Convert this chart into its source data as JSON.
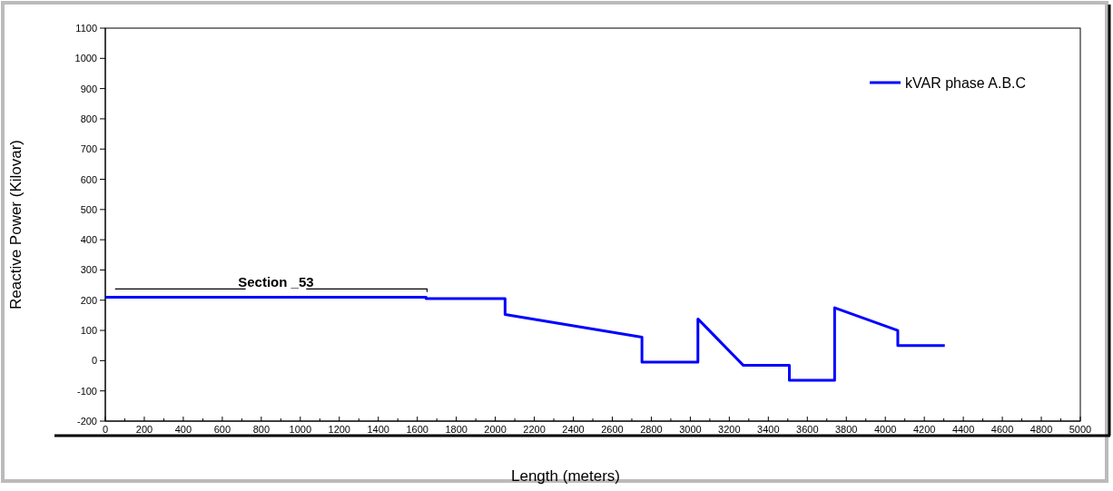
{
  "chart_data": {
    "type": "line",
    "xlabel": "Length (meters)",
    "ylabel": "Reactive Power (Kilovar)",
    "xlim": [
      0,
      5000
    ],
    "xticks": [
      0,
      200,
      400,
      600,
      800,
      1000,
      1200,
      1400,
      1600,
      1800,
      2000,
      2200,
      2400,
      2600,
      2800,
      3000,
      3200,
      3400,
      3600,
      3800,
      4000,
      4200,
      4400,
      4600,
      4800,
      5000
    ],
    "ylim": [
      -200,
      1100
    ],
    "yticks": [
      -200,
      -100,
      0,
      100,
      200,
      300,
      400,
      500,
      600,
      700,
      800,
      900,
      1000,
      1100
    ],
    "grid": false,
    "legend": "top right",
    "line_style": "solid",
    "annotations": [
      "Section _53"
    ],
    "series": [
      {
        "name": "kVAR phase A.B.C",
        "color": "#0000ff",
        "x": [
          0,
          1645,
          1645,
          2050,
          2050,
          2752,
          2752,
          3039,
          3039,
          3271,
          3508,
          3508,
          3740,
          3740,
          4064,
          4064,
          4305
        ],
        "values": [
          210,
          210,
          205,
          205,
          153,
          78,
          -5,
          -5,
          138,
          -15,
          -15,
          -65,
          -65,
          175,
          100,
          50,
          50
        ]
      }
    ]
  }
}
